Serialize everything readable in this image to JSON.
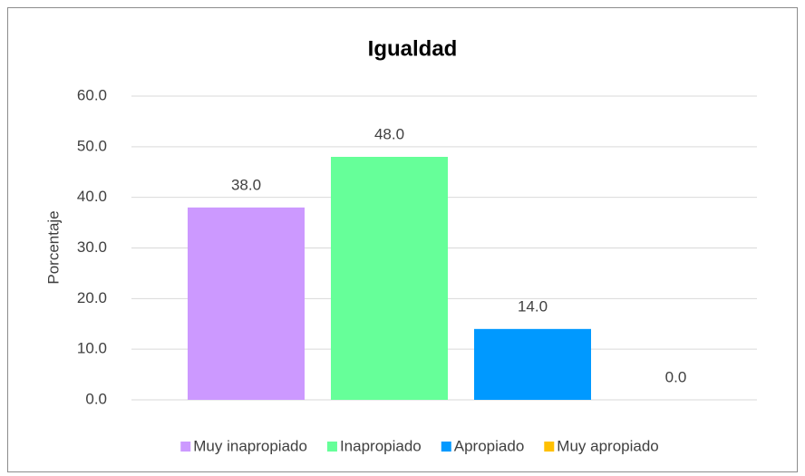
{
  "chart_data": {
    "type": "bar",
    "title": "Igualdad",
    "y_label": "Porcentaje",
    "categories": [
      null
    ],
    "series": [
      {
        "name": "Muy inapropiado",
        "color": "#cc99ff",
        "values": [
          38
        ],
        "value_labels": [
          "38.0"
        ]
      },
      {
        "name": "Inapropiado",
        "color": "#66ff99",
        "values": [
          48
        ],
        "value_labels": [
          "48.0"
        ]
      },
      {
        "name": "Apropiado",
        "color": "#0099ff",
        "values": [
          14
        ],
        "value_labels": [
          "14.0"
        ]
      },
      {
        "name": "Muy apropiado",
        "color": "#ffc000",
        "values": [
          0
        ],
        "value_labels": [
          "0.0"
        ]
      }
    ],
    "ylim": [
      0,
      60
    ],
    "yticks": [
      {
        "value": 0,
        "label": "0.0"
      },
      {
        "value": 10,
        "label": "10.0"
      },
      {
        "value": 20,
        "label": "20.0"
      },
      {
        "value": 30,
        "label": "30.0"
      },
      {
        "value": 40,
        "label": "40.0"
      },
      {
        "value": 50,
        "label": "50.0"
      },
      {
        "value": 60,
        "label": "60.0"
      }
    ],
    "grid": true,
    "legend": "bottom"
  }
}
